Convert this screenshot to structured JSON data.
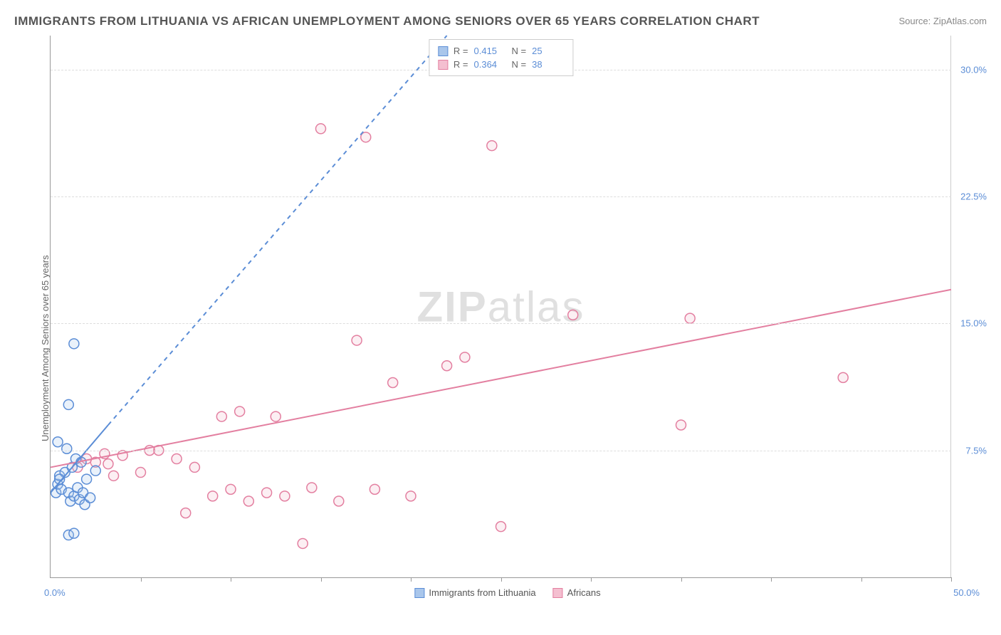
{
  "title": "IMMIGRANTS FROM LITHUANIA VS AFRICAN UNEMPLOYMENT AMONG SENIORS OVER 65 YEARS CORRELATION CHART",
  "source": "Source: ZipAtlas.com",
  "watermark_a": "ZIP",
  "watermark_b": "atlas",
  "ylabel": "Unemployment Among Seniors over 65 years",
  "chart": {
    "type": "scatter",
    "xmin": 0,
    "xmax": 50,
    "ymin": 0,
    "ymax": 32,
    "x_tick_positions": [
      0,
      5,
      10,
      15,
      20,
      25,
      30,
      35,
      40,
      45,
      50
    ],
    "x_label_min": "0.0%",
    "x_label_max": "50.0%",
    "y_ticks": [
      {
        "v": 7.5,
        "label": "7.5%"
      },
      {
        "v": 15.0,
        "label": "15.0%"
      },
      {
        "v": 22.5,
        "label": "22.5%"
      },
      {
        "v": 30.0,
        "label": "30.0%"
      }
    ],
    "grid_color": "#dddddd",
    "axis_color": "#999999",
    "background": "#ffffff",
    "marker_radius": 7,
    "marker_stroke_width": 1.5,
    "marker_fill_opacity": 0.25,
    "regression_line_width": 2,
    "series": {
      "lithuania": {
        "label": "Immigrants from Lithuania",
        "color_stroke": "#5b8dd6",
        "color_fill": "#a9c6eb",
        "R": "0.415",
        "N": "25",
        "regression": {
          "x1": 0,
          "y1": 5.0,
          "x2": 3.2,
          "y2": 9.0,
          "dashed": false
        },
        "extrap": {
          "x1": 3.2,
          "y1": 9.0,
          "x2": 22,
          "y2": 32,
          "dashed": true
        },
        "points": [
          [
            0.3,
            5.0
          ],
          [
            0.4,
            5.5
          ],
          [
            0.5,
            6.0
          ],
          [
            0.6,
            5.2
          ],
          [
            0.8,
            6.2
          ],
          [
            0.9,
            7.6
          ],
          [
            1.0,
            5.0
          ],
          [
            1.1,
            4.5
          ],
          [
            1.2,
            6.5
          ],
          [
            1.3,
            4.8
          ],
          [
            1.4,
            7.0
          ],
          [
            1.5,
            5.3
          ],
          [
            1.6,
            4.6
          ],
          [
            1.7,
            6.8
          ],
          [
            1.8,
            5.0
          ],
          [
            1.9,
            4.3
          ],
          [
            2.0,
            5.8
          ],
          [
            2.2,
            4.7
          ],
          [
            1.0,
            2.5
          ],
          [
            1.3,
            2.6
          ],
          [
            1.0,
            10.2
          ],
          [
            1.3,
            13.8
          ],
          [
            0.4,
            8.0
          ],
          [
            0.5,
            5.8
          ],
          [
            2.5,
            6.3
          ]
        ]
      },
      "africans": {
        "label": "Africans",
        "color_stroke": "#e37fa0",
        "color_fill": "#f4bfd0",
        "R": "0.364",
        "N": "38",
        "regression": {
          "x1": 0,
          "y1": 6.5,
          "x2": 50,
          "y2": 17.0,
          "dashed": false
        },
        "points": [
          [
            1.5,
            6.5
          ],
          [
            2.0,
            7.0
          ],
          [
            2.5,
            6.8
          ],
          [
            3.0,
            7.3
          ],
          [
            3.5,
            6.0
          ],
          [
            4.0,
            7.2
          ],
          [
            5.0,
            6.2
          ],
          [
            6.0,
            7.5
          ],
          [
            7.0,
            7.0
          ],
          [
            7.5,
            3.8
          ],
          [
            8.0,
            6.5
          ],
          [
            9.0,
            4.8
          ],
          [
            9.5,
            9.5
          ],
          [
            10.0,
            5.2
          ],
          [
            10.5,
            9.8
          ],
          [
            11.0,
            4.5
          ],
          [
            12.0,
            5.0
          ],
          [
            12.5,
            9.5
          ],
          [
            13.0,
            4.8
          ],
          [
            14.0,
            2.0
          ],
          [
            14.5,
            5.3
          ],
          [
            15.0,
            26.5
          ],
          [
            16.0,
            4.5
          ],
          [
            17.0,
            14.0
          ],
          [
            17.5,
            26.0
          ],
          [
            18.0,
            5.2
          ],
          [
            19.0,
            11.5
          ],
          [
            20.0,
            4.8
          ],
          [
            22.0,
            12.5
          ],
          [
            23.0,
            13.0
          ],
          [
            24.5,
            25.5
          ],
          [
            25.0,
            3.0
          ],
          [
            29.0,
            15.5
          ],
          [
            35.0,
            9.0
          ],
          [
            35.5,
            15.3
          ],
          [
            44.0,
            11.8
          ],
          [
            5.5,
            7.5
          ],
          [
            3.2,
            6.7
          ]
        ]
      }
    }
  },
  "legend_top_labels": {
    "R": "R  =",
    "N": "N  ="
  }
}
